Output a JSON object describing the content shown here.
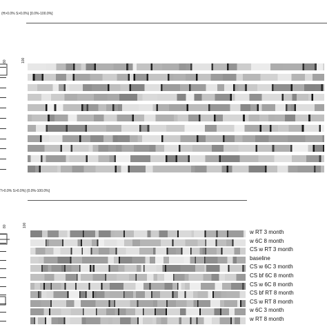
{
  "panels": [
    {
      "settings": "(H>0.0% S>0.0%) [0.0%-100.0%]",
      "scale": [
        "80",
        "100"
      ],
      "lanes": 11,
      "labels": []
    },
    {
      "settings": "?>0.0% S>0.0%) [0.0%-100.0%]",
      "scale": [
        "80",
        "100"
      ],
      "lanes": 11,
      "labels": [
        "w RT 3 month",
        "w 6C 8 month",
        "CS w RT 3 month",
        "baseline",
        "CS w 6C 3 month",
        "CS bf 6C 8 month",
        "CS w 6C 8 month",
        "CS bf RT 8 month",
        "CS w RT 8 month",
        "w 6C 3 month",
        "w RT 8 month"
      ]
    }
  ],
  "colors": {
    "band_dark": "#111111",
    "lane_light": "#e9e9e9",
    "lane_mid": "#bdbdbd"
  }
}
